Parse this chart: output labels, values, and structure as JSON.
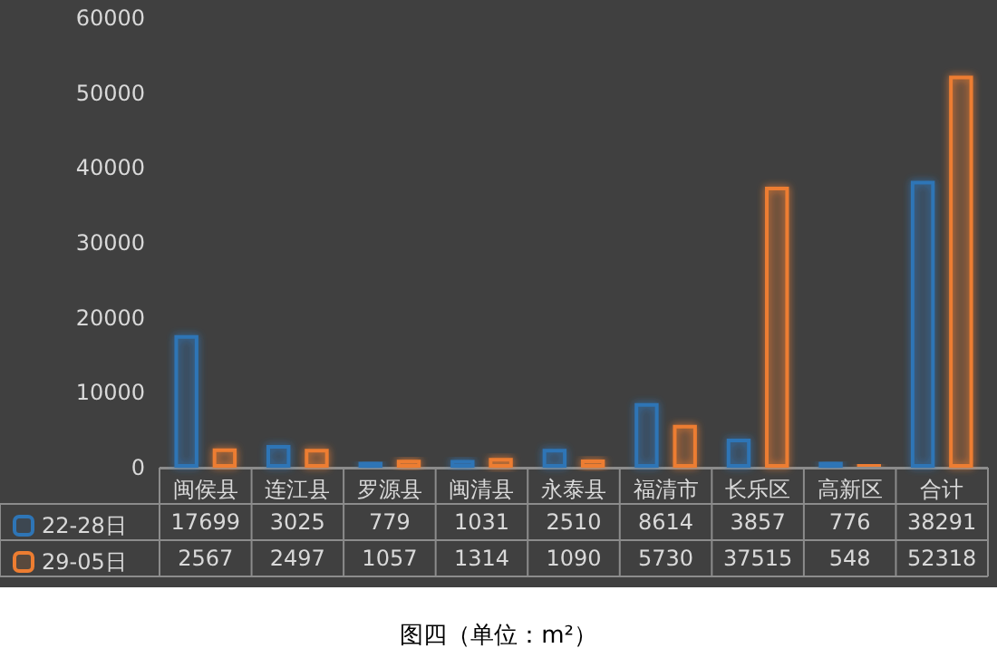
{
  "chart_data": {
    "type": "bar",
    "categories": [
      "闽侯县",
      "连江县",
      "罗源县",
      "闽清县",
      "永泰县",
      "福清市",
      "长乐区",
      "高新区",
      "合计"
    ],
    "series": [
      {
        "name": "22-28日",
        "color": "#2e75b6",
        "values": [
          17699,
          3025,
          779,
          1031,
          2510,
          8614,
          3857,
          776,
          38291
        ]
      },
      {
        "name": "29-05日",
        "color": "#ed7d31",
        "values": [
          2567,
          2497,
          1057,
          1314,
          1090,
          5730,
          37515,
          548,
          52318
        ]
      }
    ],
    "ylim": [
      0,
      60000
    ],
    "yticks": [
      0,
      10000,
      20000,
      30000,
      40000,
      50000,
      60000
    ],
    "grid": false,
    "legend": "bottom",
    "data_labels": true,
    "annotations": [
      "图四（单位：m²）"
    ]
  }
}
